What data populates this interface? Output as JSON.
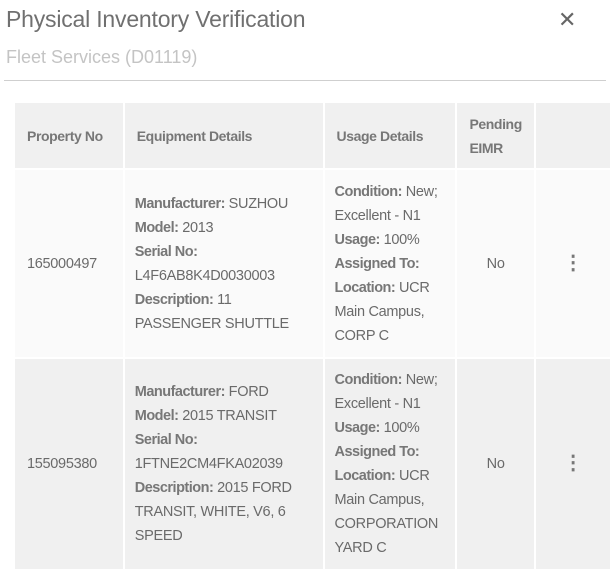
{
  "header": {
    "title": "Physical Inventory Verification",
    "subtitle": "Fleet Services (D01119)",
    "close_icon": "close-icon"
  },
  "table": {
    "columns": [
      "Property No",
      "Equipment Details",
      "Usage Details",
      "Pending EIMR",
      ""
    ],
    "labels": {
      "manufacturer": "Manufacturer:",
      "model": "Model:",
      "serial": "Serial No:",
      "description": "Description:",
      "condition": "Condition:",
      "usage": "Usage:",
      "assigned": "Assigned To:",
      "location": "Location:"
    },
    "rows": [
      {
        "property_no": "165000497",
        "manufacturer": "SUZHOU",
        "model": "2013",
        "serial": "L4F6AB8K4D0030003",
        "description": "11 PASSENGER SHUTTLE",
        "condition": "New; Excellent - N1",
        "usage": "100%",
        "assigned": "",
        "location": "UCR Main Campus, CORP C",
        "pending_eimr": "No"
      },
      {
        "property_no": "155095380",
        "manufacturer": "FORD",
        "model": "2015 TRANSIT",
        "serial": "1FTNE2CM4FKA02039",
        "description": "2015 FORD TRANSIT, WHITE, V6, 6 SPEED",
        "condition": "New; Excellent - N1",
        "usage": "100%",
        "assigned": "",
        "location": "UCR Main Campus, CORPORATION YARD C",
        "pending_eimr": "No"
      }
    ]
  }
}
